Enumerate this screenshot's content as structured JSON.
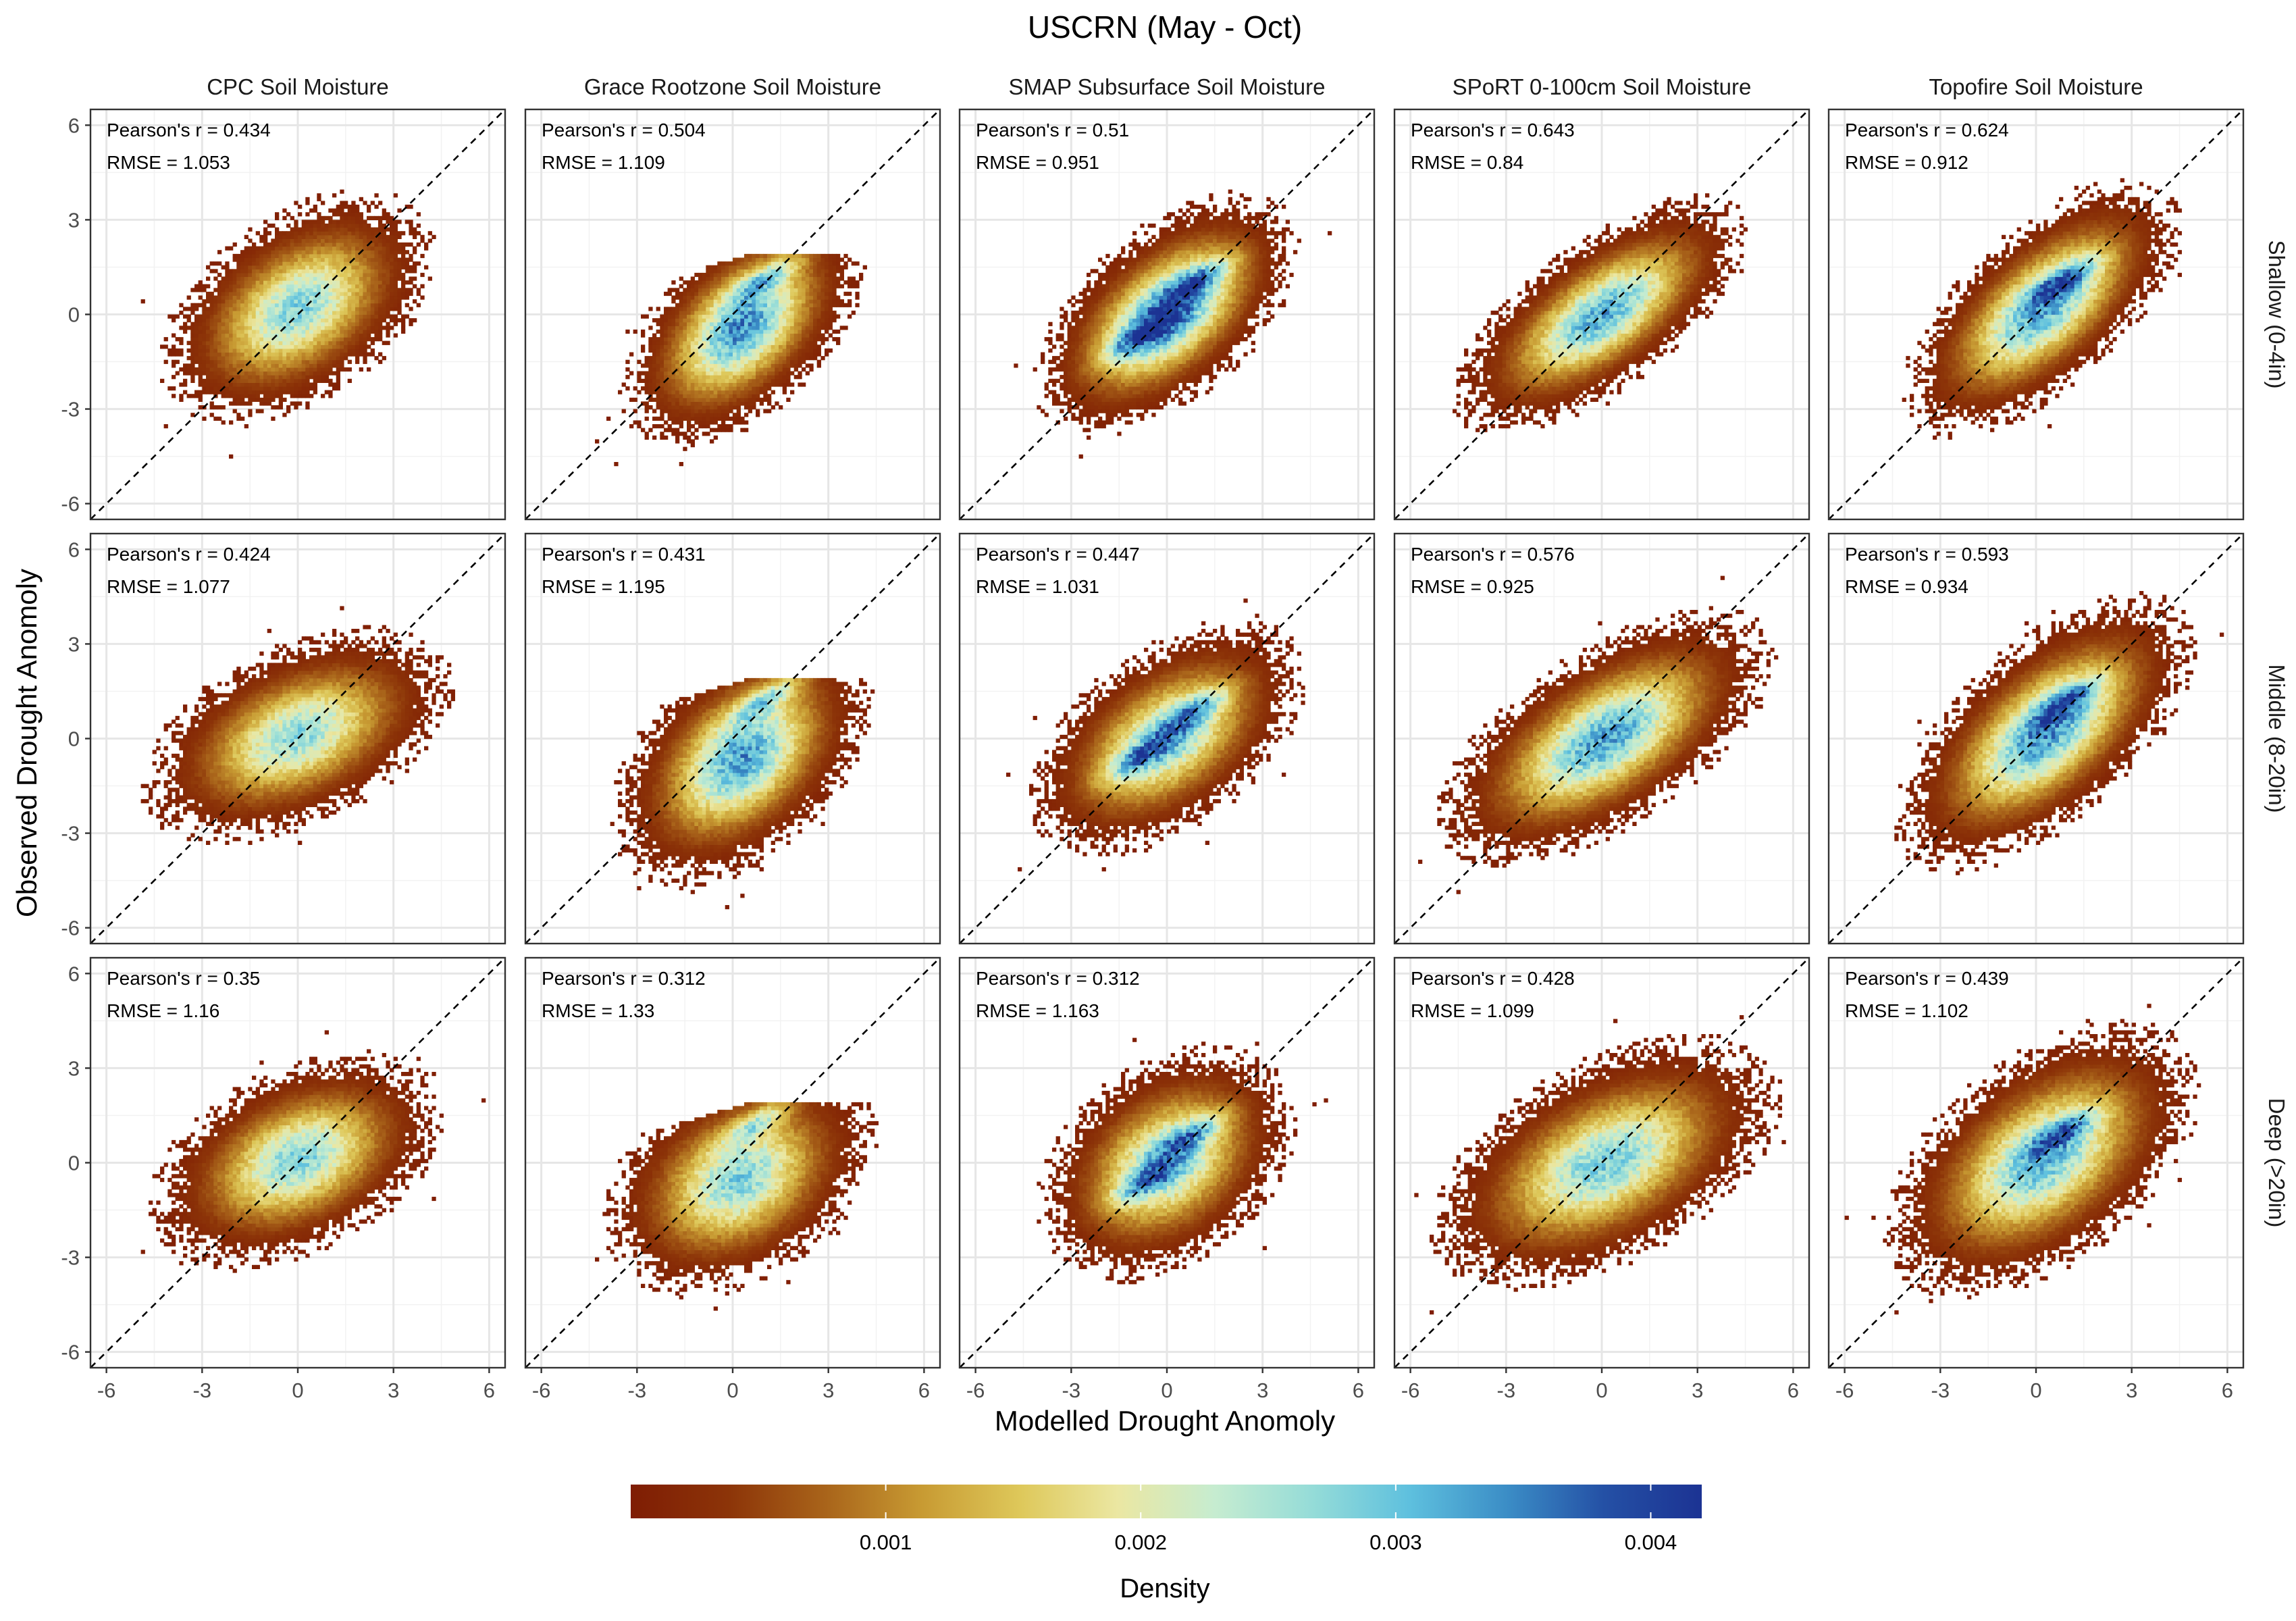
{
  "chart_data": {
    "type": "heatmap",
    "title": "USCRN (May - Oct)",
    "xlabel": "Modelled Drought Anomoly",
    "ylabel": "Observed Drought Anomoly",
    "xlim": [
      -6.5,
      6.5
    ],
    "ylim": [
      -6.5,
      6.5
    ],
    "ticks": [
      -6,
      -3,
      0,
      3,
      6
    ],
    "tick_labels": [
      "-6",
      "-3",
      "0",
      "3",
      "6"
    ],
    "grid": true,
    "reference_line": "y = x (dashed)",
    "columns": [
      "CPC Soil Moisture",
      "Grace Rootzone Soil Moisture",
      "SMAP Subsurface Soil Moisture",
      "SPoRT 0-100cm Soil Moisture",
      "Topofire Soil Moisture"
    ],
    "rows": [
      "Shallow (0-4in)",
      "Middle (8-20in)",
      "Deep (>20in)"
    ],
    "stats": [
      [
        {
          "pearson": "Pearson's r = 0.434",
          "rmse": "RMSE = 1.053"
        },
        {
          "pearson": "Pearson's r = 0.504",
          "rmse": "RMSE = 1.109"
        },
        {
          "pearson": "Pearson's r = 0.51",
          "rmse": "RMSE = 0.951"
        },
        {
          "pearson": "Pearson's r = 0.643",
          "rmse": "RMSE = 0.84"
        },
        {
          "pearson": "Pearson's r = 0.624",
          "rmse": "RMSE = 0.912"
        }
      ],
      [
        {
          "pearson": "Pearson's r = 0.424",
          "rmse": "RMSE = 1.077"
        },
        {
          "pearson": "Pearson's r = 0.431",
          "rmse": "RMSE = 1.195"
        },
        {
          "pearson": "Pearson's r = 0.447",
          "rmse": "RMSE = 1.031"
        },
        {
          "pearson": "Pearson's r = 0.576",
          "rmse": "RMSE = 0.925"
        },
        {
          "pearson": "Pearson's r = 0.593",
          "rmse": "RMSE = 0.934"
        }
      ],
      [
        {
          "pearson": "Pearson's r = 0.35",
          "rmse": "RMSE = 1.16"
        },
        {
          "pearson": "Pearson's r = 0.312",
          "rmse": "RMSE = 1.33"
        },
        {
          "pearson": "Pearson's r = 0.312",
          "rmse": "RMSE = 1.163"
        },
        {
          "pearson": "Pearson's r = 0.428",
          "rmse": "RMSE = 1.099"
        },
        {
          "pearson": "Pearson's r = 0.439",
          "rmse": "RMSE = 1.102"
        }
      ]
    ],
    "density_clusters": [
      [
        {
          "cx": 0.0,
          "cy": 0.2,
          "sx": 1.5,
          "sy": 1.3,
          "rho": 0.45,
          "peak": 0.0028,
          "lower_cap": null,
          "upper_cap": null,
          "hot": []
        },
        {
          "cx": 0.3,
          "cy": -0.4,
          "sx": 1.3,
          "sy": 1.3,
          "rho": 0.5,
          "peak": 0.0034,
          "lower_cap": null,
          "upper_cap": 1.8,
          "hot": [
            [
              1.1,
              1.2
            ]
          ]
        },
        {
          "cx": 0.0,
          "cy": 0.0,
          "sx": 1.4,
          "sy": 1.3,
          "rho": 0.55,
          "peak": 0.0038,
          "lower_cap": null,
          "upper_cap": null,
          "hot": [
            [
              -0.9,
              -0.7
            ],
            [
              1.0,
              1.1
            ]
          ]
        },
        {
          "cx": 0.0,
          "cy": 0.0,
          "sx": 1.6,
          "sy": 1.3,
          "rho": 0.68,
          "peak": 0.0032,
          "lower_cap": null,
          "upper_cap": null,
          "hot": []
        },
        {
          "cx": 0.2,
          "cy": 0.2,
          "sx": 1.5,
          "sy": 1.4,
          "rho": 0.65,
          "peak": 0.0033,
          "lower_cap": null,
          "upper_cap": null,
          "hot": [
            [
              0.9,
              1.1
            ]
          ]
        }
      ],
      [
        {
          "cx": 0.0,
          "cy": 0.1,
          "sx": 1.7,
          "sy": 1.2,
          "rho": 0.45,
          "peak": 0.0027,
          "lower_cap": null,
          "upper_cap": null,
          "hot": []
        },
        {
          "cx": 0.3,
          "cy": -0.6,
          "sx": 1.4,
          "sy": 1.4,
          "rho": 0.45,
          "peak": 0.0033,
          "lower_cap": null,
          "upper_cap": 1.8,
          "hot": [
            [
              1.1,
              1.3
            ]
          ]
        },
        {
          "cx": 0.0,
          "cy": 0.0,
          "sx": 1.5,
          "sy": 1.3,
          "rho": 0.5,
          "peak": 0.0029,
          "lower_cap": null,
          "upper_cap": null,
          "hot": [
            [
              -0.9,
              -0.6
            ],
            [
              0.9,
              0.9
            ]
          ]
        },
        {
          "cx": 0.1,
          "cy": 0.0,
          "sx": 1.8,
          "sy": 1.4,
          "rho": 0.62,
          "peak": 0.0033,
          "lower_cap": null,
          "upper_cap": null,
          "hot": []
        },
        {
          "cx": 0.3,
          "cy": 0.2,
          "sx": 1.6,
          "sy": 1.5,
          "rho": 0.62,
          "peak": 0.0034,
          "lower_cap": null,
          "upper_cap": null,
          "hot": [
            [
              1.0,
              1.2
            ]
          ]
        }
      ],
      [
        {
          "cx": 0.0,
          "cy": 0.1,
          "sx": 1.6,
          "sy": 1.2,
          "rho": 0.4,
          "peak": 0.0028,
          "lower_cap": null,
          "upper_cap": null,
          "hot": []
        },
        {
          "cx": 0.2,
          "cy": -0.5,
          "sx": 1.5,
          "sy": 1.3,
          "rho": 0.35,
          "peak": 0.0028,
          "lower_cap": null,
          "upper_cap": 1.8,
          "hot": [
            [
              0.8,
              1.3
            ]
          ]
        },
        {
          "cx": 0.0,
          "cy": 0.0,
          "sx": 1.4,
          "sy": 1.3,
          "rho": 0.35,
          "peak": 0.0029,
          "lower_cap": null,
          "upper_cap": null,
          "hot": [
            [
              -0.7,
              -0.6
            ],
            [
              0.8,
              0.9
            ]
          ]
        },
        {
          "cx": 0.1,
          "cy": 0.0,
          "sx": 1.9,
          "sy": 1.4,
          "rho": 0.5,
          "peak": 0.0029,
          "lower_cap": null,
          "upper_cap": null,
          "hot": []
        },
        {
          "cx": 0.2,
          "cy": 0.1,
          "sx": 1.7,
          "sy": 1.5,
          "rho": 0.5,
          "peak": 0.0031,
          "lower_cap": null,
          "upper_cap": null,
          "hot": [
            [
              0.9,
              1.0
            ]
          ]
        }
      ]
    ],
    "legend": {
      "title": "Density",
      "position": "bottom",
      "range": [
        0,
        0.0042
      ],
      "ticks": [
        0.001,
        0.002,
        0.003,
        0.004
      ],
      "tick_labels": [
        "0.001",
        "0.002",
        "0.003",
        "0.004"
      ],
      "colors": [
        "#7f1d04",
        "#8c3408",
        "#a9641a",
        "#c89b33",
        "#dec85a",
        "#ebe7a2",
        "#c6ecd0",
        "#95dcd8",
        "#5ec0de",
        "#3b8dc6",
        "#2450a5",
        "#1c3393"
      ]
    }
  }
}
